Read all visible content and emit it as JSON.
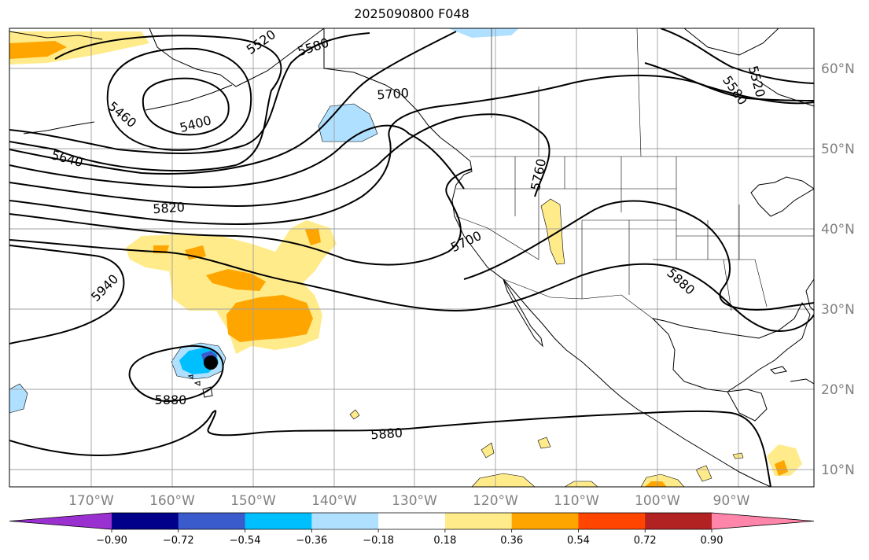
{
  "title": "2025090800 F048",
  "longitude_labels": [
    "170°W",
    "160°W",
    "150°W",
    "140°W",
    "130°W",
    "120°W",
    "110°W",
    "100°W",
    "90°W"
  ],
  "latitude_labels": [
    "60°N",
    "50°N",
    "40°N",
    "30°N",
    "20°N",
    "10°N"
  ],
  "contour_labels": [
    "5520",
    "5580",
    "5700",
    "5460",
    "5400",
    "5640",
    "5820",
    "5760",
    "5700",
    "5940",
    "5880",
    "5880",
    "5880",
    "5580",
    "5520"
  ],
  "colorbar": {
    "ticks": [
      "−0.90",
      "−0.72",
      "−0.54",
      "−0.36",
      "−0.18",
      "0.18",
      "0.36",
      "0.54",
      "0.72",
      "0.90"
    ],
    "colors": [
      "#9b30d0",
      "#00008b",
      "#3a5bcc",
      "#00bfff",
      "#b0e0ff",
      "#ffffff",
      "#ffeb8a",
      "#ffa500",
      "#ff4500",
      "#b22222",
      "#ff85aa"
    ]
  },
  "colors": {
    "shade_light_yellow": "#ffeb8a",
    "shade_orange": "#ffa500",
    "shade_light_blue": "#b0e0ff",
    "shade_blue": "#00bfff",
    "shade_mid_blue": "#3a5bcc"
  },
  "marker": "storm-center-dot"
}
